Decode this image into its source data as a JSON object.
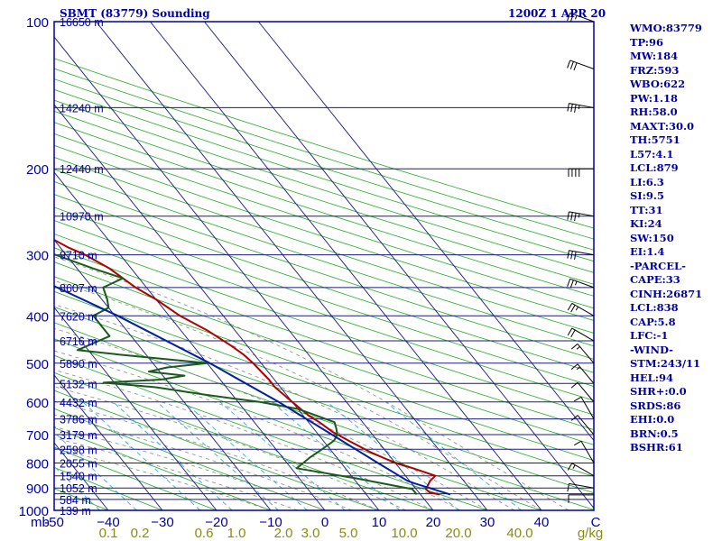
{
  "header": {
    "station": "SBMT (83779) Sounding",
    "timestamp": "1200Z  1 APR 20"
  },
  "indices": [
    "WMO:83779",
    "TP:96",
    "MW:184",
    "FRZ:593",
    "WBO:622",
    "PW:1.18",
    "RH:58.0",
    "MAXT:30.0",
    "TH:5751",
    "L57:4.1",
    "LCL:879",
    "LI:6.3",
    "SI:9.5",
    "TT:31",
    "KI:24",
    "SW:150",
    "EI:1.4",
    "-PARCEL-",
    "CAPE:33",
    "CINH:26871",
    "LCL:838",
    "CAP:5.8",
    "LFC:-1",
    "-WIND-",
    "STM:243/11",
    "HEL:94",
    "SHR+:0.0",
    "SRDS:86",
    "EHI:0.0",
    "BRN:0.5",
    "BSHR:61"
  ],
  "chart_data": {
    "type": "line",
    "title": "SBMT (83779) Sounding",
    "subtitle": "1200Z  1 APR 20",
    "x_axis": {
      "unit_label": "mb",
      "temperature_ticks": [
        -50,
        -40,
        -30,
        -20,
        -10,
        0,
        10,
        20,
        30,
        40,
        50
      ],
      "temperature_tick_labels": [
        "-50",
        "−40",
        "−30",
        "−20",
        "−10",
        "0",
        "10",
        "20",
        "30",
        "40",
        "C"
      ],
      "mixing_ratio_ticks": [
        0.1,
        0.2,
        0.6,
        1.0,
        2.0,
        3.0,
        5.0,
        10.0,
        20.0,
        40.0
      ],
      "mixing_ratio_tick_labels": [
        "0.1",
        "0.2",
        "0.6",
        "1.0",
        "2.0",
        "3.0",
        "5.0",
        "10.0",
        "20.0",
        "40.0",
        "g/kg"
      ]
    },
    "y_axis": {
      "scale": "log",
      "range_mb": [
        1000,
        100
      ],
      "pressure_ticks": [
        100,
        200,
        300,
        400,
        500,
        600,
        700,
        800,
        900,
        1000
      ],
      "isobars_mb": [
        100,
        150,
        200,
        250,
        300,
        350,
        400,
        450,
        500,
        550,
        600,
        650,
        700,
        750,
        800,
        850,
        900,
        925,
        950,
        1000
      ],
      "height_labels": [
        {
          "p": 100,
          "label": "16650 m"
        },
        {
          "p": 150,
          "label": "14240 m"
        },
        {
          "p": 200,
          "label": "12440 m"
        },
        {
          "p": 250,
          "label": "10970 m"
        },
        {
          "p": 300,
          "label": "9710 m"
        },
        {
          "p": 350,
          "label": "8607 m"
        },
        {
          "p": 400,
          "label": "7620 m"
        },
        {
          "p": 450,
          "label": "6716 m"
        },
        {
          "p": 500,
          "label": "5890 m"
        },
        {
          "p": 550,
          "label": "5132 m"
        },
        {
          "p": 600,
          "label": "4432 m"
        },
        {
          "p": 650,
          "label": "3786 m"
        },
        {
          "p": 700,
          "label": "3179 m"
        },
        {
          "p": 750,
          "label": "2598 m"
        },
        {
          "p": 800,
          "label": "2055 m"
        },
        {
          "p": 850,
          "label": "1540 m"
        },
        {
          "p": 900,
          "label": "1052 m"
        },
        {
          "p": 950,
          "label": "584 m"
        },
        {
          "p": 1000,
          "label": "139 m"
        }
      ]
    },
    "grid": true,
    "series": [
      {
        "role": "temperature",
        "color": "#b00000",
        "points": [
          [
            928,
            23.5
          ],
          [
            920,
            22
          ],
          [
            905,
            21.8
          ],
          [
            870,
            23.8
          ],
          [
            850,
            25.5
          ],
          [
            820,
            22.5
          ],
          [
            800,
            20
          ],
          [
            760,
            17
          ],
          [
            720,
            14.7
          ],
          [
            690,
            13
          ],
          [
            660,
            12
          ],
          [
            640,
            11
          ],
          [
            600,
            10
          ],
          [
            560,
            9
          ],
          [
            540,
            9
          ],
          [
            500,
            8.5
          ],
          [
            480,
            8
          ],
          [
            460,
            7
          ],
          [
            430,
            5
          ],
          [
            400,
            2
          ],
          [
            370,
            0
          ],
          [
            350,
            -2
          ],
          [
            320,
            -4
          ],
          [
            300,
            -6.5
          ],
          [
            290,
            -8.5
          ],
          [
            260,
            -13
          ],
          [
            240,
            -17
          ],
          [
            220,
            -21
          ],
          [
            205,
            -25
          ],
          [
            190,
            -29
          ],
          [
            180,
            -33
          ],
          [
            165,
            -37
          ],
          [
            160,
            -40
          ],
          [
            152,
            -42
          ],
          [
            140,
            -45
          ],
          [
            120,
            -52
          ],
          [
            100,
            -58
          ]
        ]
      },
      {
        "role": "dewpoint",
        "color": "#1a5a1a",
        "points": [
          [
            928,
            19.3
          ],
          [
            905,
            19.3
          ],
          [
            860,
            10.5
          ],
          [
            820,
            1
          ],
          [
            800,
            3
          ],
          [
            780,
            5
          ],
          [
            750,
            8.5
          ],
          [
            720,
            12
          ],
          [
            700,
            13.5
          ],
          [
            680,
            14.2
          ],
          [
            660,
            14.8
          ],
          [
            620,
            10
          ],
          [
            600,
            4
          ],
          [
            580,
            -5
          ],
          [
            560,
            -13
          ],
          [
            548,
            -22
          ],
          [
            540,
            -11
          ],
          [
            530,
            -6
          ],
          [
            520,
            -12
          ],
          [
            510,
            -8
          ],
          [
            500,
            0
          ],
          [
            480,
            -15
          ],
          [
            470,
            -22
          ],
          [
            455,
            -18
          ],
          [
            440,
            -14
          ],
          [
            420,
            -14
          ],
          [
            400,
            -14
          ],
          [
            385,
            -10
          ],
          [
            370,
            -9
          ],
          [
            350,
            -8
          ],
          [
            335,
            -3
          ],
          [
            320,
            -7
          ],
          [
            300,
            -12
          ],
          [
            290,
            -15
          ],
          [
            280,
            -24
          ],
          [
            265,
            -28
          ],
          [
            250,
            -31
          ],
          [
            230,
            -33
          ],
          [
            200,
            -40
          ],
          [
            180,
            -45
          ],
          [
            165,
            -48
          ],
          [
            150,
            -50
          ],
          [
            140,
            -64
          ],
          [
            125,
            -68
          ],
          [
            110,
            -69
          ],
          [
            100,
            -73
          ]
        ]
      },
      {
        "role": "parcel",
        "color": "#0020a0",
        "points": [
          [
            928,
            25.5
          ],
          [
            880,
            20.5
          ],
          [
            870,
            19.6
          ],
          [
            800,
            16.8
          ],
          [
            700,
            12.5
          ],
          [
            600,
            7.5
          ],
          [
            500,
            0.5
          ],
          [
            400,
            -9.5
          ],
          [
            350,
            -16.5
          ],
          [
            300,
            -25
          ],
          [
            250,
            -35
          ],
          [
            200,
            -48
          ],
          [
            150,
            -63
          ],
          [
            125,
            -72
          ],
          [
            110,
            -78
          ],
          [
            100,
            -81
          ]
        ]
      }
    ],
    "wind_barbs": [
      {
        "p": 930,
        "dir": 270,
        "spd": 10
      },
      {
        "p": 900,
        "dir": 280,
        "spd": 10
      },
      {
        "p": 850,
        "dir": 300,
        "spd": 15
      },
      {
        "p": 800,
        "dir": 330,
        "spd": 10
      },
      {
        "p": 700,
        "dir": 320,
        "spd": 10
      },
      {
        "p": 650,
        "dir": 330,
        "spd": 10
      },
      {
        "p": 600,
        "dir": 320,
        "spd": 10
      },
      {
        "p": 550,
        "dir": 320,
        "spd": 15
      },
      {
        "p": 500,
        "dir": 320,
        "spd": 15
      },
      {
        "p": 450,
        "dir": 300,
        "spd": 20
      },
      {
        "p": 400,
        "dir": 300,
        "spd": 25
      },
      {
        "p": 350,
        "dir": 290,
        "spd": 25
      },
      {
        "p": 300,
        "dir": 280,
        "spd": 30
      },
      {
        "p": 250,
        "dir": 280,
        "spd": 35
      },
      {
        "p": 200,
        "dir": 270,
        "spd": 40
      },
      {
        "p": 150,
        "dir": 280,
        "spd": 35
      },
      {
        "p": 125,
        "dir": 290,
        "spd": 30
      },
      {
        "p": 100,
        "dir": 290,
        "spd": 25
      }
    ]
  }
}
